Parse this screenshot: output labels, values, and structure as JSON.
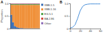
{
  "chart_data": [
    {
      "type": "bar",
      "title": "A",
      "stacked": true,
      "tick_labels": "y",
      "legend": "right",
      "y_label": "Proportion",
      "categories": [
        null,
        null,
        null,
        null,
        null,
        null,
        null,
        null,
        null,
        null,
        null,
        null,
        null,
        null,
        null,
        null
      ],
      "ylim": [
        0,
        1
      ],
      "yticks": [
        0,
        0.5,
        {
          "value": 1,
          "label": "1.0"
        }
      ],
      "series": [
        {
          "name": "XBB.1.5",
          "color": "#3b6fb6",
          "values": [
            0.55,
            0.25,
            0.1,
            0.05,
            0.03,
            0.02,
            0.02,
            0.01,
            0.01,
            0.01,
            0.01,
            0.01,
            0.01,
            0.01,
            0.01,
            0.01
          ]
        },
        {
          "name": "XBB.1.16",
          "color": "#f0913a",
          "values": [
            0.39,
            0.69,
            0.84,
            0.89,
            0.91,
            0.92,
            0.92,
            0.93,
            0.93,
            0.93,
            0.93,
            0.93,
            0.93,
            0.93,
            0.93,
            0.93
          ]
        },
        {
          "name": "EG.5.1",
          "color": "#4fa34a",
          "values": [
            0.03,
            0.03,
            0.03,
            0.03,
            0.03,
            0.03,
            0.03,
            0.03,
            0.03,
            0.03,
            0.03,
            0.03,
            0.03,
            0.03,
            0.03,
            0.03
          ]
        },
        {
          "name": "BA.2.86",
          "color": "#d24a3f",
          "values": [
            0.02,
            0.02,
            0.02,
            0.02,
            0.02,
            0.02,
            0.02,
            0.02,
            0.02,
            0.02,
            0.02,
            0.02,
            0.02,
            0.02,
            0.02,
            0.02
          ]
        },
        {
          "name": "Other",
          "color": "#8c6bb8",
          "values": [
            0.01,
            0.01,
            0.01,
            0.01,
            0.01,
            0.01,
            0.01,
            0.01,
            0.01,
            0.01,
            0.01,
            0.01,
            0.01,
            0.01,
            0.01,
            0.01
          ]
        }
      ]
    },
    {
      "type": "line",
      "title": "B",
      "x": [
        0,
        5,
        10,
        15,
        20,
        25,
        30,
        35,
        40,
        45,
        50,
        55,
        60
      ],
      "xlim": [
        0,
        60
      ],
      "xticks": [
        0,
        20,
        40,
        60
      ],
      "ylim": [
        0,
        1
      ],
      "yticks": [
        0,
        0.5,
        {
          "value": 1,
          "label": "1.0"
        }
      ],
      "series": [
        {
          "name": "B",
          "color": "#4a90d9",
          "values": [
            0.02,
            0.05,
            0.15,
            0.4,
            0.7,
            0.88,
            0.95,
            0.97,
            0.98,
            0.98,
            0.98,
            0.98,
            0.98
          ]
        }
      ]
    }
  ]
}
